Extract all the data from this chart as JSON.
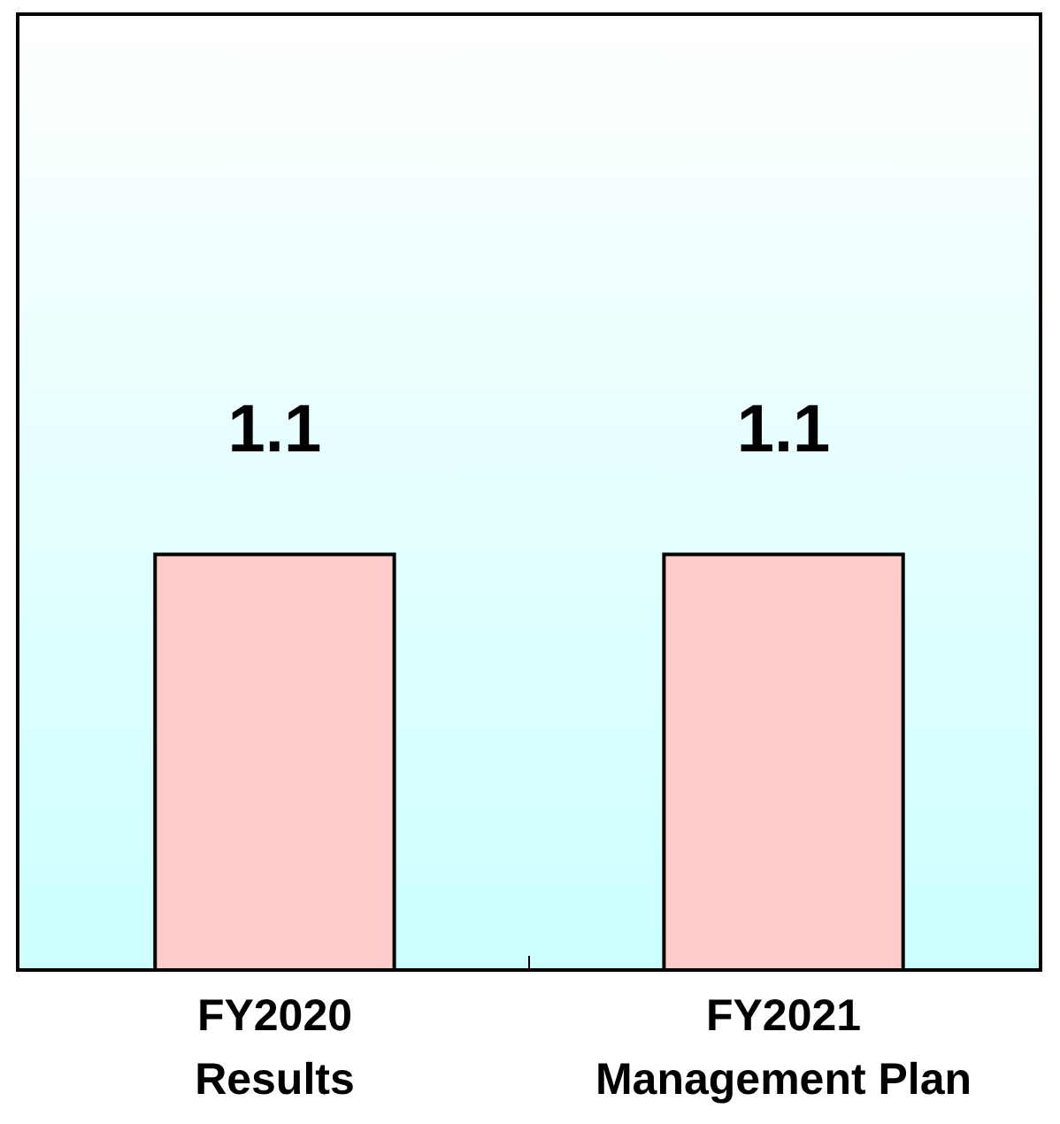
{
  "chart_data": {
    "type": "bar",
    "categories": [
      "FY2020\nResults",
      "FY2021\nManagement Plan"
    ],
    "values": [
      1.1,
      1.1
    ],
    "color": "#ffcccc",
    "data_labels": true
  }
}
